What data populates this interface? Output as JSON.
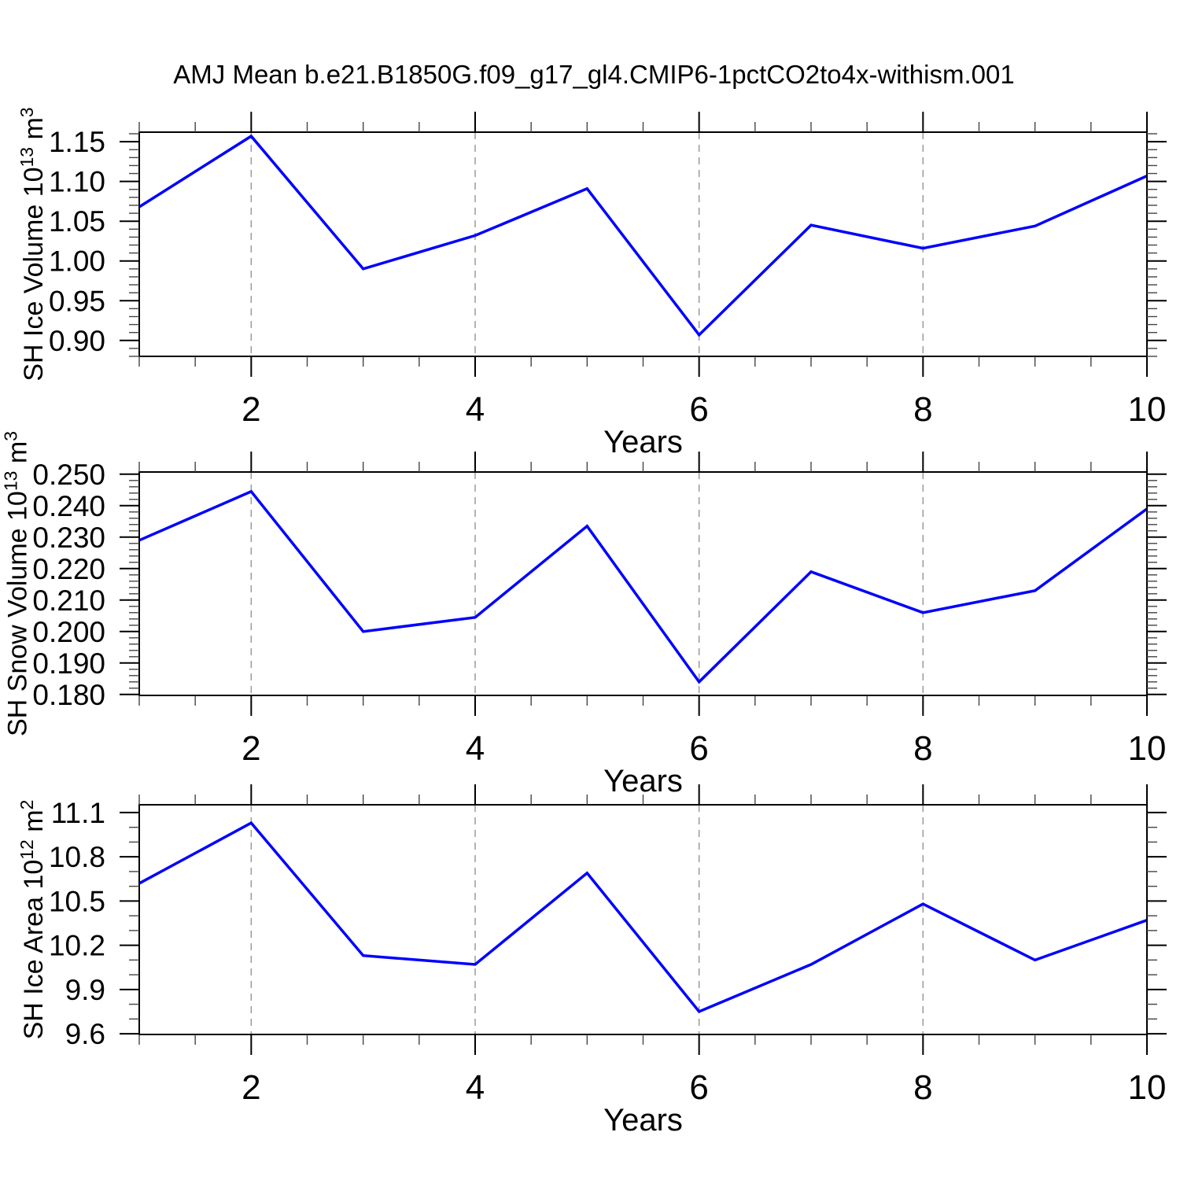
{
  "title": "AMJ Mean b.e21.B1850G.f09_g17_gl4.CMIP6-1pctCO2to4x-withism.001",
  "colors": {
    "series_line": "#0000ff",
    "gridline": "#9a9a9a",
    "frame": "#000000",
    "minor_tick": "#444444"
  },
  "chart_data": [
    {
      "type": "line",
      "xlabel": "Years",
      "ylabel": "SH Ice Volume 10^13 m^3",
      "x": [
        1,
        2,
        3,
        4,
        5,
        6,
        7,
        8,
        9,
        10
      ],
      "values": [
        1.068,
        1.157,
        0.99,
        1.032,
        1.091,
        0.907,
        1.045,
        1.016,
        1.044,
        1.107
      ],
      "xlim": [
        1,
        10
      ],
      "ylim": [
        0.88,
        1.162
      ],
      "xticks": [
        2,
        4,
        6,
        8,
        10
      ],
      "xtick_labels": [
        "2",
        "4",
        "6",
        "8",
        "10"
      ],
      "yticks": [
        0.9,
        0.95,
        1.0,
        1.05,
        1.1,
        1.15
      ],
      "ytick_labels": [
        "0.90",
        "0.95",
        "1.00",
        "1.05",
        "1.10",
        "1.15"
      ],
      "minor_x_step": 0.5,
      "minor_y_step": 0.01,
      "gridlines_x": [
        2,
        4,
        6,
        8
      ],
      "grid_style": "dashed-vertical",
      "legend": "none"
    },
    {
      "type": "line",
      "xlabel": "Years",
      "ylabel": "SH Snow Volume 10^13 m^3",
      "x": [
        1,
        2,
        3,
        4,
        5,
        6,
        7,
        8,
        9,
        10
      ],
      "values": [
        0.229,
        0.2445,
        0.2,
        0.2045,
        0.2335,
        0.184,
        0.219,
        0.206,
        0.213,
        0.239
      ],
      "xlim": [
        1,
        10
      ],
      "ylim": [
        0.1797,
        0.2507
      ],
      "xticks": [
        2,
        4,
        6,
        8,
        10
      ],
      "xtick_labels": [
        "2",
        "4",
        "6",
        "8",
        "10"
      ],
      "yticks": [
        0.18,
        0.19,
        0.2,
        0.21,
        0.22,
        0.23,
        0.24,
        0.25
      ],
      "ytick_labels": [
        "0.180",
        "0.190",
        "0.200",
        "0.210",
        "0.220",
        "0.230",
        "0.240",
        "0.250"
      ],
      "minor_x_step": 0.5,
      "minor_y_step": 0.002,
      "gridlines_x": [
        2,
        4,
        6,
        8
      ],
      "grid_style": "dashed-vertical",
      "legend": "none"
    },
    {
      "type": "line",
      "xlabel": "Years",
      "ylabel": "SH Ice Area 10^12 m^2",
      "x": [
        1,
        2,
        3,
        4,
        5,
        6,
        7,
        8,
        9,
        10
      ],
      "values": [
        10.62,
        11.03,
        10.13,
        10.07,
        10.69,
        9.75,
        10.07,
        10.48,
        10.1,
        10.37
      ],
      "xlim": [
        1,
        10
      ],
      "ylim": [
        9.595,
        11.153
      ],
      "xticks": [
        2,
        4,
        6,
        8,
        10
      ],
      "xtick_labels": [
        "2",
        "4",
        "6",
        "8",
        "10"
      ],
      "yticks": [
        9.6,
        9.9,
        10.2,
        10.5,
        10.8,
        11.1
      ],
      "ytick_labels": [
        "9.6",
        "9.9",
        "10.2",
        "10.5",
        "10.8",
        "11.1"
      ],
      "minor_x_step": 0.5,
      "minor_y_step": 0.1,
      "gridlines_x": [
        2,
        4,
        6,
        8
      ],
      "grid_style": "dashed-vertical",
      "legend": "none"
    }
  ]
}
